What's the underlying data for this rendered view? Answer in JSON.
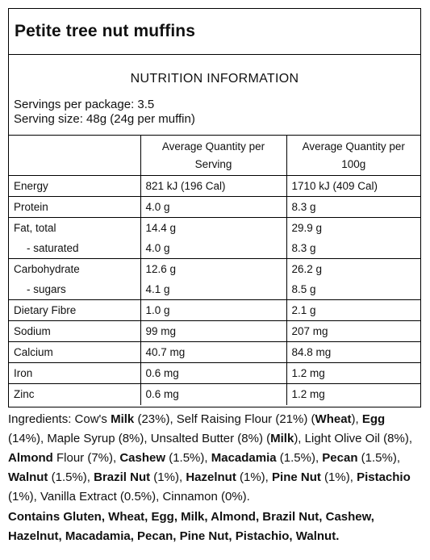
{
  "product": {
    "title": "Petite tree nut muffins"
  },
  "panel": {
    "heading": "NUTRITION INFORMATION",
    "servings_per_package": "Servings per package: 3.5",
    "serving_size": "Serving size: 48g (24g per muffin)"
  },
  "table": {
    "headers": [
      "",
      "Average Quantity per Serving",
      "Average Quantity per 100g"
    ],
    "rows": [
      {
        "label": "Energy",
        "serving": "821 kJ (196 Cal)",
        "per100": "1710 kJ (409 Cal)"
      },
      {
        "label": "Protein",
        "serving": "4.0 g",
        "per100": "8.3 g"
      },
      {
        "label": "Fat, total",
        "serving": "14.4 g",
        "per100": "29.9 g",
        "sub": {
          "label": "- saturated",
          "serving": "4.0 g",
          "per100": "8.3 g"
        }
      },
      {
        "label": "Carbohydrate",
        "serving": "12.6 g",
        "per100": "26.2 g",
        "sub": {
          "label": "- sugars",
          "serving": "4.1 g",
          "per100": "8.5 g"
        }
      },
      {
        "label": "Dietary Fibre",
        "serving": "1.0 g",
        "per100": "2.1 g"
      },
      {
        "label": "Sodium",
        "serving": "99 mg",
        "per100": "207 mg"
      },
      {
        "label": "Calcium",
        "serving": "40.7 mg",
        "per100": "84.8 mg"
      },
      {
        "label": "Iron",
        "serving": "0.6 mg",
        "per100": "1.2 mg"
      },
      {
        "label": "Zinc",
        "serving": "0.6 mg",
        "per100": "1.2 mg"
      }
    ]
  },
  "ingredients": [
    {
      "t": "Ingredients: Cow's "
    },
    {
      "t": "Milk",
      "b": true
    },
    {
      "t": " (23%), Self Raising Flour (21%) ("
    },
    {
      "t": "Wheat",
      "b": true
    },
    {
      "t": "), "
    },
    {
      "t": "Egg",
      "b": true
    },
    {
      "t": " (14%), Maple Syrup (8%), Unsalted Butter (8%) ("
    },
    {
      "t": "Milk",
      "b": true
    },
    {
      "t": "), Light Olive Oil (8%), "
    },
    {
      "t": "Almond",
      "b": true
    },
    {
      "t": " Flour (7%), "
    },
    {
      "t": "Cashew",
      "b": true
    },
    {
      "t": " (1.5%), "
    },
    {
      "t": "Macadamia",
      "b": true
    },
    {
      "t": " (1.5%), "
    },
    {
      "t": "Pecan",
      "b": true
    },
    {
      "t": " (1.5%), "
    },
    {
      "t": "Walnut",
      "b": true
    },
    {
      "t": " (1.5%), "
    },
    {
      "t": "Brazil Nut",
      "b": true
    },
    {
      "t": " (1%), "
    },
    {
      "t": "Hazelnut",
      "b": true
    },
    {
      "t": " (1%), "
    },
    {
      "t": "Pine Nut",
      "b": true
    },
    {
      "t": " (1%), "
    },
    {
      "t": "Pistachio",
      "b": true
    },
    {
      "t": " (1%), Vanilla Extract (0.5%), Cinnamon (0%)."
    }
  ],
  "allergens": "Contains Gluten, Wheat, Egg, Milk, Almond, Brazil Nut, Cashew, Hazelnut, Macadamia, Pecan, Pine Nut, Pistachio, Walnut."
}
